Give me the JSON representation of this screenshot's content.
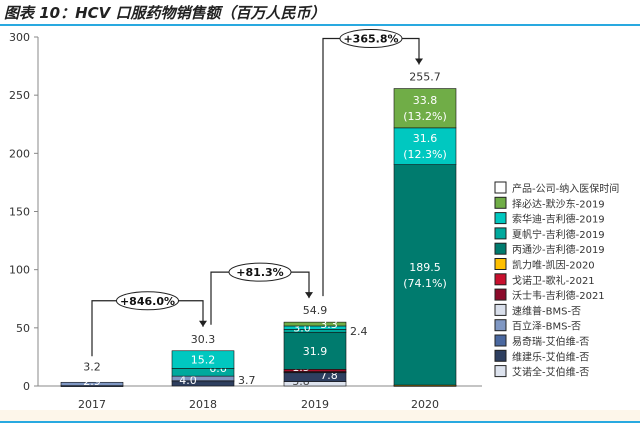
{
  "title": "图表 10：HCV 口服药物销售额（百万人民币）",
  "chart_data": {
    "type": "bar",
    "stacked": true,
    "categories": [
      "2017",
      "2018",
      "2019",
      "2020"
    ],
    "ylim": [
      0,
      300
    ],
    "yticks": [
      0,
      50,
      100,
      150,
      200,
      250,
      300
    ],
    "totals": [
      3.2,
      30.3,
      54.9,
      255.7
    ],
    "legend_header": "产品-公司-纳入医保时间",
    "legend_position": "right",
    "series": [
      {
        "name": "艾诺全-艾伯维-否",
        "color": "#dde3ee",
        "values": [
          0,
          0,
          3.8,
          0.5
        ],
        "labels": [
          null,
          null,
          "3.8",
          "0.5"
        ]
      },
      {
        "name": "维建乐-艾伯维-否",
        "color": "#2e3f60",
        "values": [
          0.3,
          3.7,
          7.8,
          0
        ],
        "labels": [
          null,
          "3.7",
          "7.8",
          null
        ]
      },
      {
        "name": "易奇瑞-艾伯维-否",
        "color": "#4a68a0",
        "values": [
          0,
          0.8,
          0.6,
          0
        ],
        "labels": [
          null,
          null,
          null,
          null
        ]
      },
      {
        "name": "百立泽-BMS-否",
        "color": "#7f97c3",
        "values": [
          2.9,
          4.0,
          0,
          0
        ],
        "labels": [
          "2.9",
          "4.0",
          null,
          null
        ]
      },
      {
        "name": "速维普-BMS-否",
        "color": "#d9dfeb",
        "values": [
          0,
          0,
          0,
          0
        ],
        "labels": [
          null,
          null,
          null,
          null
        ]
      },
      {
        "name": "沃士韦-吉利德-2021",
        "color": "#8b0a2a",
        "values": [
          0,
          0,
          0.6,
          0
        ],
        "labels": [
          null,
          null,
          null,
          null
        ]
      },
      {
        "name": "戈诺卫-歌礼-2021",
        "color": "#c8102e",
        "values": [
          0,
          0,
          1.5,
          0
        ],
        "labels": [
          null,
          null,
          "1.5",
          null
        ]
      },
      {
        "name": "凯力唯-凯因-2020",
        "color": "#ffc000",
        "values": [
          0,
          0,
          0,
          0.3
        ],
        "labels": [
          null,
          null,
          null,
          null
        ]
      },
      {
        "name": "丙通沙-吉利德-2019",
        "color": "#007b6e",
        "values": [
          0,
          0,
          31.9,
          189.5
        ],
        "labels": [
          null,
          null,
          "31.9",
          "189.5\n(74.1%)"
        ]
      },
      {
        "name": "夏帆宁-吉利德-2019",
        "color": "#00a99d",
        "values": [
          0,
          6.6,
          2.4,
          0
        ],
        "labels": [
          null,
          "6.6",
          "2.4",
          null
        ]
      },
      {
        "name": "索华迪-吉利德-2019",
        "color": "#00c8c0",
        "values": [
          0,
          15.2,
          3.0,
          31.6
        ],
        "labels": [
          null,
          "15.2",
          "3.0",
          "31.6\n(12.3%)"
        ]
      },
      {
        "name": "择必达-默沙东-2019",
        "color": "#70ad47",
        "values": [
          0,
          0,
          3.3,
          33.8
        ],
        "labels": [
          null,
          null,
          "3.3",
          "33.8\n(13.2%)"
        ]
      }
    ],
    "growth_annotations": [
      {
        "from": "2017",
        "to": "2018",
        "text": "+846.0%"
      },
      {
        "from": "2018",
        "to": "2019",
        "text": "+81.3%"
      },
      {
        "from": "2019",
        "to": "2020",
        "text": "+365.8%"
      }
    ]
  }
}
